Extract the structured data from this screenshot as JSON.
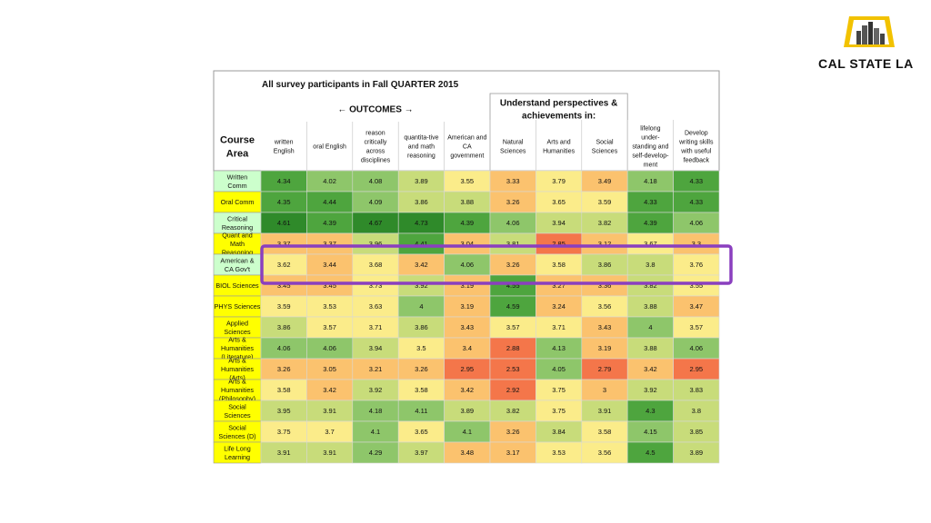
{
  "logo": {
    "name": "CAL STATE LA"
  },
  "chart_data": {
    "type": "heatmap",
    "title": "All survey participants in Fall QUARTER 2015",
    "corner_label": [
      "Course",
      "Area"
    ],
    "group_headers": [
      {
        "label": "← OUTCOMES →",
        "columns": [
          0,
          4
        ]
      },
      {
        "label": [
          "Understand perspectives &",
          "achievements in:"
        ],
        "columns": [
          5,
          7
        ]
      }
    ],
    "columns": [
      [
        "written",
        "English"
      ],
      [
        "oral English"
      ],
      [
        "reason",
        "critically",
        "across",
        "disciplines"
      ],
      [
        "quantita-tive",
        "and math",
        "reasoning"
      ],
      [
        "American and",
        "CA",
        "government"
      ],
      [
        "Natural",
        "Sciences"
      ],
      [
        "Arts and",
        "Humanities"
      ],
      [
        "Social",
        "Sciences"
      ],
      [
        "lifelong",
        "under-",
        "standing and",
        "self-develop-",
        "ment"
      ],
      [
        "Develop",
        "writing skills",
        "with useful",
        "feedback"
      ]
    ],
    "rows": [
      {
        "label": [
          "Written",
          "Comm"
        ],
        "values": [
          4.34,
          4.02,
          4.08,
          3.89,
          3.55,
          3.33,
          3.79,
          3.49,
          4.18,
          4.33
        ]
      },
      {
        "label": [
          "Oral Comm"
        ],
        "values": [
          4.35,
          4.44,
          4.09,
          3.86,
          3.88,
          3.26,
          3.65,
          3.59,
          4.33,
          4.33
        ]
      },
      {
        "label": [
          "Critical",
          "Reasoning"
        ],
        "values": [
          4.61,
          4.39,
          4.67,
          4.73,
          4.39,
          4.06,
          3.94,
          3.82,
          4.39,
          4.06
        ]
      },
      {
        "label": [
          "Quant and",
          "Math",
          "Reasoning"
        ],
        "values": [
          3.37,
          3.37,
          3.96,
          4.41,
          3.04,
          3.81,
          2.85,
          3.12,
          3.67,
          3.3
        ]
      },
      {
        "label": [
          "American &",
          "CA Gov't"
        ],
        "values": [
          3.62,
          3.44,
          3.68,
          3.42,
          4.06,
          3.26,
          3.58,
          3.86,
          3.8,
          3.76
        ]
      },
      {
        "label": [
          "BIOL Sciences"
        ],
        "values": [
          3.45,
          3.45,
          3.73,
          3.92,
          3.19,
          4.55,
          3.27,
          3.36,
          3.82,
          3.55
        ]
      },
      {
        "label": [
          "PHYS Sciences"
        ],
        "values": [
          3.59,
          3.53,
          3.63,
          4,
          3.19,
          4.59,
          3.24,
          3.56,
          3.88,
          3.47
        ]
      },
      {
        "label": [
          "Applied",
          "Sciences"
        ],
        "values": [
          3.86,
          3.57,
          3.71,
          3.86,
          3.43,
          3.57,
          3.71,
          3.43,
          4,
          3.57
        ]
      },
      {
        "label": [
          "Arts &",
          "Humanities",
          "(Literature)"
        ],
        "values": [
          4.06,
          4.06,
          3.94,
          3.5,
          3.4,
          2.88,
          4.13,
          3.19,
          3.88,
          4.06
        ]
      },
      {
        "label": [
          "Arts &",
          "Humanities",
          "(Arts)"
        ],
        "values": [
          3.26,
          3.05,
          3.21,
          3.26,
          2.95,
          2.53,
          4.05,
          2.79,
          3.42,
          2.95
        ]
      },
      {
        "label": [
          "Arts &",
          "Humanities",
          "(Philosophy)"
        ],
        "values": [
          3.58,
          3.42,
          3.92,
          3.58,
          3.42,
          2.92,
          3.75,
          3,
          3.92,
          3.83
        ]
      },
      {
        "label": [
          "Social",
          "Sciences"
        ],
        "values": [
          3.95,
          3.91,
          4.18,
          4.11,
          3.89,
          3.82,
          3.75,
          3.91,
          4.3,
          3.8
        ]
      },
      {
        "label": [
          "Social",
          "Sciences (D)"
        ],
        "values": [
          3.75,
          3.7,
          4.1,
          3.65,
          4.1,
          3.26,
          3.84,
          3.58,
          4.15,
          3.85
        ]
      },
      {
        "label": [
          "Life Long",
          "Learning"
        ],
        "values": [
          3.91,
          3.91,
          4.29,
          3.97,
          3.48,
          3.17,
          3.53,
          3.56,
          4.5,
          3.89
        ]
      }
    ],
    "row_label_colors": [
      "#ccffcc",
      "#ffff00",
      "#ccffcc",
      "#ffff00",
      "#ccffcc",
      "#ffff00",
      "#ffff00",
      "#ffff00",
      "#ffff00",
      "#ffff00",
      "#ffff00",
      "#ffff00",
      "#ffff00",
      "#ffff00"
    ],
    "color_scale": {
      "low": "#f8696b",
      "mid": "#ffeb84",
      "high": "#63be7b",
      "colors": [
        "#f4764a",
        "#fbc26e",
        "#fbec8a",
        "#c8dc7a",
        "#8ec66a",
        "#4ea53e",
        "#2f8a2a"
      ]
    },
    "highlight": {
      "rows": [
        4
      ],
      "color": "#8a3fbf"
    }
  }
}
